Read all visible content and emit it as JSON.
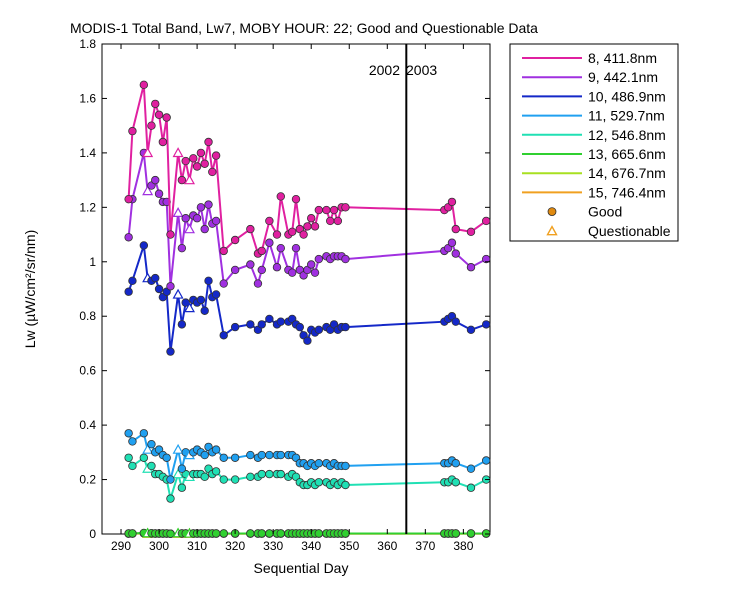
{
  "chart_data": {
    "type": "line",
    "title": "MODIS-1 Total Band,  Lw7, MOBY HOUR: 22;  Good and Questionable Data",
    "xlabel": "Sequential Day",
    "ylabel": "Lw (µW/cm²/sr/nm)",
    "xlim": [
      285,
      387
    ],
    "ylim": [
      0,
      1.8
    ],
    "xticks": [
      290,
      300,
      310,
      320,
      330,
      340,
      350,
      360,
      370,
      380
    ],
    "yticks": [
      0,
      0.2,
      0.4,
      0.6,
      0.8,
      1,
      1.2,
      1.4,
      1.6,
      1.8
    ],
    "grid": false,
    "legend_position": "outside-right",
    "year_divider": {
      "x": 365,
      "left_label": "2002",
      "right_label": "2003"
    },
    "x": [
      292,
      293,
      296,
      297,
      298,
      299,
      300,
      301,
      302,
      303,
      305,
      306,
      307,
      308,
      309,
      310,
      311,
      312,
      313,
      314,
      315,
      317,
      320,
      324,
      326,
      327,
      329,
      331,
      332,
      334,
      335,
      336,
      337,
      338,
      339,
      340,
      341,
      342,
      344,
      345,
      346,
      347,
      348,
      349,
      375,
      376,
      377,
      378,
      382,
      386
    ],
    "series": [
      {
        "name": "8, 411.8nm",
        "color": "#e020a0",
        "values": [
          1.23,
          1.48,
          1.65,
          1.4,
          1.5,
          1.58,
          1.54,
          1.44,
          1.53,
          1.1,
          1.4,
          1.3,
          1.37,
          1.3,
          1.38,
          1.35,
          1.4,
          1.36,
          1.44,
          1.33,
          1.39,
          1.04,
          1.08,
          1.12,
          1.03,
          1.04,
          1.15,
          1.1,
          1.24,
          1.1,
          1.11,
          1.23,
          1.12,
          1.1,
          1.13,
          1.16,
          1.13,
          1.19,
          1.19,
          1.15,
          1.19,
          1.15,
          1.2,
          1.2,
          1.19,
          1.2,
          1.22,
          1.12,
          1.11,
          1.15
        ]
      },
      {
        "name": "9, 442.1nm",
        "color": "#a030e0",
        "values": [
          1.09,
          1.23,
          1.4,
          1.26,
          1.28,
          1.3,
          1.25,
          1.22,
          1.22,
          0.91,
          1.18,
          1.05,
          1.16,
          1.12,
          1.17,
          1.16,
          1.2,
          1.12,
          1.21,
          1.14,
          1.15,
          0.92,
          0.97,
          0.99,
          0.92,
          0.97,
          1.07,
          0.98,
          1.05,
          0.97,
          0.96,
          1.05,
          0.97,
          0.95,
          0.97,
          0.99,
          0.96,
          1.01,
          1.02,
          1.01,
          1.02,
          1.02,
          1.02,
          1.01,
          1.04,
          1.05,
          1.07,
          1.03,
          0.98,
          1.01
        ]
      },
      {
        "name": "10, 486.9nm",
        "color": "#1428c8",
        "values": [
          0.89,
          0.93,
          1.06,
          0.94,
          0.93,
          0.94,
          0.9,
          0.87,
          0.89,
          0.67,
          0.88,
          0.77,
          0.85,
          0.83,
          0.86,
          0.85,
          0.86,
          0.82,
          0.93,
          0.87,
          0.88,
          0.73,
          0.76,
          0.77,
          0.75,
          0.77,
          0.79,
          0.77,
          0.78,
          0.78,
          0.79,
          0.77,
          0.76,
          0.73,
          0.71,
          0.75,
          0.74,
          0.75,
          0.76,
          0.75,
          0.77,
          0.75,
          0.76,
          0.76,
          0.78,
          0.79,
          0.8,
          0.78,
          0.75,
          0.77
        ]
      },
      {
        "name": "11, 529.7nm",
        "color": "#20a0f0",
        "values": [
          0.37,
          0.34,
          0.37,
          0.31,
          0.33,
          0.3,
          0.31,
          0.29,
          0.28,
          0.2,
          0.31,
          0.24,
          0.3,
          0.29,
          0.3,
          0.31,
          0.3,
          0.29,
          0.32,
          0.3,
          0.31,
          0.28,
          0.28,
          0.29,
          0.28,
          0.29,
          0.29,
          0.29,
          0.29,
          0.29,
          0.29,
          0.28,
          0.26,
          0.26,
          0.25,
          0.26,
          0.25,
          0.26,
          0.26,
          0.25,
          0.26,
          0.25,
          0.25,
          0.25,
          0.26,
          0.26,
          0.27,
          0.26,
          0.24,
          0.27
        ]
      },
      {
        "name": "12, 546.8nm",
        "color": "#20e0b4",
        "values": [
          0.28,
          0.25,
          0.28,
          0.24,
          0.25,
          0.22,
          0.22,
          0.21,
          0.2,
          0.13,
          0.22,
          0.17,
          0.22,
          0.21,
          0.22,
          0.22,
          0.22,
          0.21,
          0.24,
          0.22,
          0.23,
          0.2,
          0.2,
          0.21,
          0.21,
          0.22,
          0.22,
          0.22,
          0.22,
          0.21,
          0.22,
          0.21,
          0.19,
          0.18,
          0.18,
          0.19,
          0.18,
          0.19,
          0.19,
          0.18,
          0.19,
          0.18,
          0.19,
          0.18,
          0.19,
          0.19,
          0.2,
          0.19,
          0.17,
          0.2
        ]
      },
      {
        "name": "13, 665.6nm",
        "color": "#30d030",
        "values": [
          0.002,
          0.002,
          0.004,
          0.003,
          0.003,
          0.002,
          0.002,
          0.002,
          0.002,
          0.001,
          0.003,
          0.002,
          0.002,
          0.002,
          0.002,
          0.002,
          0.002,
          0.002,
          0.002,
          0.002,
          0.002,
          0.002,
          0.002,
          0.002,
          0.002,
          0.002,
          0.002,
          0.002,
          0.002,
          0.002,
          0.002,
          0.002,
          0.002,
          0.002,
          0.002,
          0.002,
          0.002,
          0.002,
          0.002,
          0.002,
          0.002,
          0.002,
          0.002,
          0.002,
          0.002,
          0.002,
          0.002,
          0.002,
          0.002,
          0.002
        ]
      },
      {
        "name": "14, 676.7nm",
        "color": "#a8e020",
        "values": [
          0.002,
          0.002,
          0.003,
          0.002,
          0.002,
          0.002,
          0.002,
          0.002,
          0.002,
          0.001,
          0.002,
          0.002,
          0.002,
          0.002,
          0.002,
          0.002,
          0.002,
          0.002,
          0.002,
          0.002,
          0.002,
          0.002,
          0.002,
          0.002,
          0.002,
          0.002,
          0.002,
          0.002,
          0.002,
          0.002,
          0.002,
          0.002,
          0.002,
          0.002,
          0.002,
          0.002,
          0.002,
          0.002,
          0.002,
          0.002,
          0.002,
          0.002,
          0.002,
          0.002,
          0.002,
          0.002,
          0.002,
          0.002,
          0.002,
          0.002
        ]
      },
      {
        "name": "15, 746.4nm",
        "color": "#f0a020",
        "values": [
          0.001,
          0.001,
          0.002,
          0.001,
          0.001,
          0.001,
          0.001,
          0.001,
          0.001,
          0.001,
          0.001,
          0.001,
          0.001,
          0.001,
          0.001,
          0.001,
          0.001,
          0.001,
          0.001,
          0.001,
          0.001,
          0.001,
          0.001,
          0.001,
          0.001,
          0.001,
          0.001,
          0.001,
          0.001,
          0.001,
          0.001,
          0.001,
          0.001,
          0.001,
          0.001,
          0.001,
          0.001,
          0.001,
          0.001,
          0.001,
          0.001,
          0.001,
          0.001,
          0.001,
          0.001,
          0.001,
          0.001,
          0.001,
          0.001,
          0.001
        ]
      }
    ],
    "questionable_x": [
      297,
      305,
      308,
      343
    ],
    "markers": [
      {
        "label": "Good",
        "shape": "circle",
        "color": "#e08a10"
      },
      {
        "label": "Questionable",
        "shape": "triangle",
        "color": "#f0a020"
      }
    ]
  }
}
